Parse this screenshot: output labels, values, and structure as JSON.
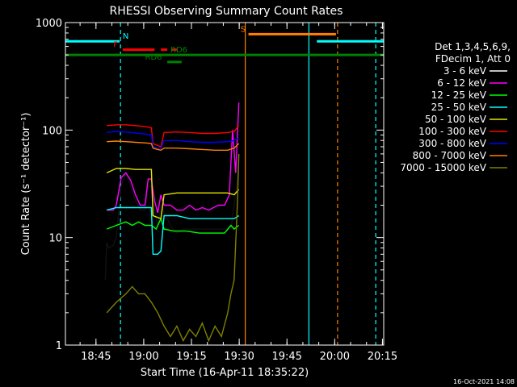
{
  "chart_data": {
    "type": "line",
    "title": "RHESSI Observing Summary Count Rates",
    "xlabel": "Start Time (16-Apr-11 18:35:22)",
    "ylabel": "Count Rate (s⁻¹ detector⁻¹)",
    "yscale": "log",
    "ylim": [
      1,
      1000
    ],
    "xlim_minutes": [
      0,
      100
    ],
    "x_ticks": [
      "18:45",
      "19:00",
      "19:15",
      "19:30",
      "19:45",
      "20:00",
      "20:15"
    ],
    "y_ticks": [
      "1",
      "10",
      "100",
      "1000"
    ],
    "legend_header": [
      "Det 1,3,4,5,6,9,",
      "FDecim 1, Att 0"
    ],
    "legend_position": "right",
    "series": [
      {
        "name": "3 - 6 keV",
        "color": "#000000",
        "points": [
          [
            12.5,
            4
          ],
          [
            13,
            9
          ],
          [
            13.6,
            8
          ],
          [
            15,
            8.5
          ],
          [
            16,
            10
          ],
          [
            17.5,
            30
          ],
          [
            19,
            40
          ],
          [
            20.5,
            30
          ],
          [
            22,
            22
          ],
          [
            23.5,
            18
          ],
          [
            25,
            18
          ],
          [
            26,
            30
          ],
          [
            27,
            30
          ],
          [
            28,
            18
          ],
          [
            29,
            13
          ],
          [
            30,
            20
          ],
          [
            31,
            17
          ],
          [
            33,
            13
          ],
          [
            35,
            11
          ],
          [
            37,
            12
          ],
          [
            39,
            12
          ],
          [
            41,
            12
          ],
          [
            43,
            12
          ],
          [
            45,
            12
          ],
          [
            48,
            12
          ],
          [
            50,
            12
          ],
          [
            52,
            12
          ],
          [
            53,
            20
          ],
          [
            54,
            35
          ],
          [
            54.5,
            60
          ]
        ]
      },
      {
        "name": "6 - 12 keV",
        "color": "#ff00ff",
        "points": [
          [
            13,
            18
          ],
          [
            15,
            18
          ],
          [
            16,
            20
          ],
          [
            17.5,
            36
          ],
          [
            19,
            40
          ],
          [
            20.5,
            34
          ],
          [
            22,
            25
          ],
          [
            23.5,
            20
          ],
          [
            25,
            20
          ],
          [
            26,
            35
          ],
          [
            27,
            35
          ],
          [
            28,
            22
          ],
          [
            29,
            17
          ],
          [
            30,
            25
          ],
          [
            31,
            20
          ],
          [
            33,
            20
          ],
          [
            35,
            18
          ],
          [
            37,
            18
          ],
          [
            39,
            20
          ],
          [
            41,
            18
          ],
          [
            43,
            19
          ],
          [
            45,
            18
          ],
          [
            48,
            20
          ],
          [
            50,
            20
          ],
          [
            51.5,
            25
          ],
          [
            52.5,
            100
          ],
          [
            53.5,
            40
          ],
          [
            54.5,
            180
          ]
        ]
      },
      {
        "name": "12 - 25 keV",
        "color": "#00ff00",
        "points": [
          [
            13,
            12
          ],
          [
            16,
            13
          ],
          [
            19,
            14
          ],
          [
            21,
            13
          ],
          [
            23,
            14
          ],
          [
            25,
            13
          ],
          [
            27,
            13
          ],
          [
            28.5,
            12
          ],
          [
            30,
            15
          ],
          [
            31,
            12
          ],
          [
            34,
            11.5
          ],
          [
            38,
            11.5
          ],
          [
            42,
            11
          ],
          [
            46,
            11
          ],
          [
            50,
            11
          ],
          [
            52,
            13
          ],
          [
            53,
            12
          ],
          [
            54.5,
            13
          ]
        ]
      },
      {
        "name": "25 - 50 keV",
        "color": "#00ffff",
        "points": [
          [
            13,
            18
          ],
          [
            16,
            19
          ],
          [
            19,
            19
          ],
          [
            22,
            19
          ],
          [
            25,
            19
          ],
          [
            27,
            19
          ],
          [
            27.5,
            7
          ],
          [
            29,
            7
          ],
          [
            30,
            7.5
          ],
          [
            31,
            16
          ],
          [
            35,
            16
          ],
          [
            39,
            15
          ],
          [
            43,
            15
          ],
          [
            47,
            15
          ],
          [
            51,
            15
          ],
          [
            53,
            15
          ],
          [
            54.5,
            16
          ]
        ]
      },
      {
        "name": "50 - 100 keV",
        "color": "#e5e500",
        "points": [
          [
            13,
            40
          ],
          [
            16,
            44
          ],
          [
            19,
            44
          ],
          [
            22,
            43
          ],
          [
            25,
            43
          ],
          [
            27,
            43
          ],
          [
            27.5,
            16
          ],
          [
            30,
            15
          ],
          [
            31,
            25
          ],
          [
            35,
            26
          ],
          [
            39,
            26
          ],
          [
            43,
            26
          ],
          [
            47,
            26
          ],
          [
            51,
            26
          ],
          [
            53,
            25
          ],
          [
            54.5,
            28
          ]
        ]
      },
      {
        "name": "100 - 300 keV",
        "color": "#ff0000",
        "points": [
          [
            13,
            110
          ],
          [
            16,
            112
          ],
          [
            19,
            112
          ],
          [
            22,
            110
          ],
          [
            25,
            108
          ],
          [
            27,
            105
          ],
          [
            27.5,
            75
          ],
          [
            29,
            72
          ],
          [
            30,
            70
          ],
          [
            31,
            95
          ],
          [
            35,
            96
          ],
          [
            39,
            95
          ],
          [
            43,
            93
          ],
          [
            47,
            93
          ],
          [
            51,
            95
          ],
          [
            53,
            97
          ],
          [
            54.5,
            110
          ]
        ]
      },
      {
        "name": "300 - 800 keV",
        "color": "#0000ff",
        "points": [
          [
            13,
            95
          ],
          [
            16,
            97
          ],
          [
            19,
            96
          ],
          [
            22,
            94
          ],
          [
            25,
            92
          ],
          [
            27,
            90
          ],
          [
            27.5,
            70
          ],
          [
            29,
            68
          ],
          [
            30,
            68
          ],
          [
            31,
            80
          ],
          [
            35,
            80
          ],
          [
            39,
            78
          ],
          [
            43,
            77
          ],
          [
            47,
            77
          ],
          [
            51,
            78
          ],
          [
            53,
            80
          ],
          [
            54.5,
            85
          ]
        ]
      },
      {
        "name": "800 - 7000 keV",
        "color": "#ff8000",
        "points": [
          [
            13,
            78
          ],
          [
            16,
            79
          ],
          [
            19,
            78
          ],
          [
            22,
            77
          ],
          [
            25,
            76
          ],
          [
            27,
            75
          ],
          [
            27.5,
            68
          ],
          [
            29,
            66
          ],
          [
            30,
            65
          ],
          [
            31,
            68
          ],
          [
            35,
            68
          ],
          [
            39,
            67
          ],
          [
            43,
            66
          ],
          [
            47,
            65
          ],
          [
            51,
            65
          ],
          [
            53,
            68
          ],
          [
            54.5,
            75
          ]
        ]
      },
      {
        "name": "7000 - 15000 keV",
        "color": "#808000",
        "points": [
          [
            13,
            2
          ],
          [
            16,
            2.5
          ],
          [
            19,
            3
          ],
          [
            21,
            3.5
          ],
          [
            23,
            3
          ],
          [
            25,
            3
          ],
          [
            27,
            2.5
          ],
          [
            29,
            2
          ],
          [
            31,
            1.5
          ],
          [
            33,
            1.2
          ],
          [
            35,
            1.5
          ],
          [
            37,
            1.1
          ],
          [
            39,
            1.4
          ],
          [
            41,
            1.2
          ],
          [
            43,
            1.6
          ],
          [
            45,
            1.1
          ],
          [
            47,
            1.5
          ],
          [
            49,
            1.2
          ],
          [
            51,
            2
          ],
          [
            52,
            3
          ],
          [
            53,
            4
          ],
          [
            54,
            20
          ],
          [
            54.5,
            60
          ]
        ]
      }
    ],
    "steady_series": [
      {
        "name": "3 - 6 keV",
        "x": [
          12.5,
          13,
          13.6,
          15,
          16,
          17.5,
          19,
          20.5,
          22,
          23.5,
          25,
          26,
          27,
          28,
          29,
          30,
          31,
          33,
          35,
          37,
          39,
          41,
          43,
          45,
          48,
          50,
          52,
          53,
          54,
          54.5
        ],
        "y": [
          4,
          9,
          8,
          8.5,
          10,
          30,
          40,
          30,
          22,
          18,
          18,
          30,
          30,
          18,
          13,
          20,
          17,
          13,
          11,
          12,
          12,
          12,
          12,
          12,
          12,
          12,
          12,
          20,
          35,
          60
        ]
      }
    ],
    "annotations": {
      "bars": [
        {
          "label": "N",
          "color": "#00ffff",
          "y": 670,
          "segments": [
            [
              0,
              17
            ]
          ],
          "label_x": 18
        },
        {
          "label": "N",
          "color": "#00ffff",
          "y": 670,
          "segments": [
            [
              79,
              100
            ]
          ],
          "label_x": null
        },
        {
          "label": "F",
          "color": "#ff0000",
          "y": 560,
          "segments": [
            [
              18,
              28
            ],
            [
              30,
              32
            ],
            [
              33.5,
              35
            ]
          ],
          "label_x": 15
        },
        {
          "label": "S",
          "color": "#ff8000",
          "y": 780,
          "segments": [
            [
              57.5,
              85
            ]
          ],
          "label_x": 55
        },
        {
          "label": "RD6",
          "color": "#008000",
          "y": 500,
          "segments": [
            [
              0,
              100
            ]
          ],
          "label_x": 33
        },
        {
          "label": "RD6",
          "color": "#008000",
          "y": 430,
          "segments": [
            [
              32,
              36.5
            ]
          ],
          "label_x": 25
        }
      ],
      "vlines": [
        {
          "x": 17.3,
          "color": "#00ffff",
          "style": "dash"
        },
        {
          "x": 56.5,
          "color": "#ff8000",
          "style": "solid"
        },
        {
          "x": 76.5,
          "color": "#00ffff",
          "style": "solid"
        },
        {
          "x": 85.5,
          "color": "#ff8000",
          "style": "dash"
        },
        {
          "x": 97.5,
          "color": "#00ffff",
          "style": "dash"
        }
      ]
    }
  },
  "footer_timestamp": "16-Oct-2021 14:08",
  "colors": {
    "background": "#000000",
    "axes": "#ffffff",
    "text": "#ffffff"
  }
}
